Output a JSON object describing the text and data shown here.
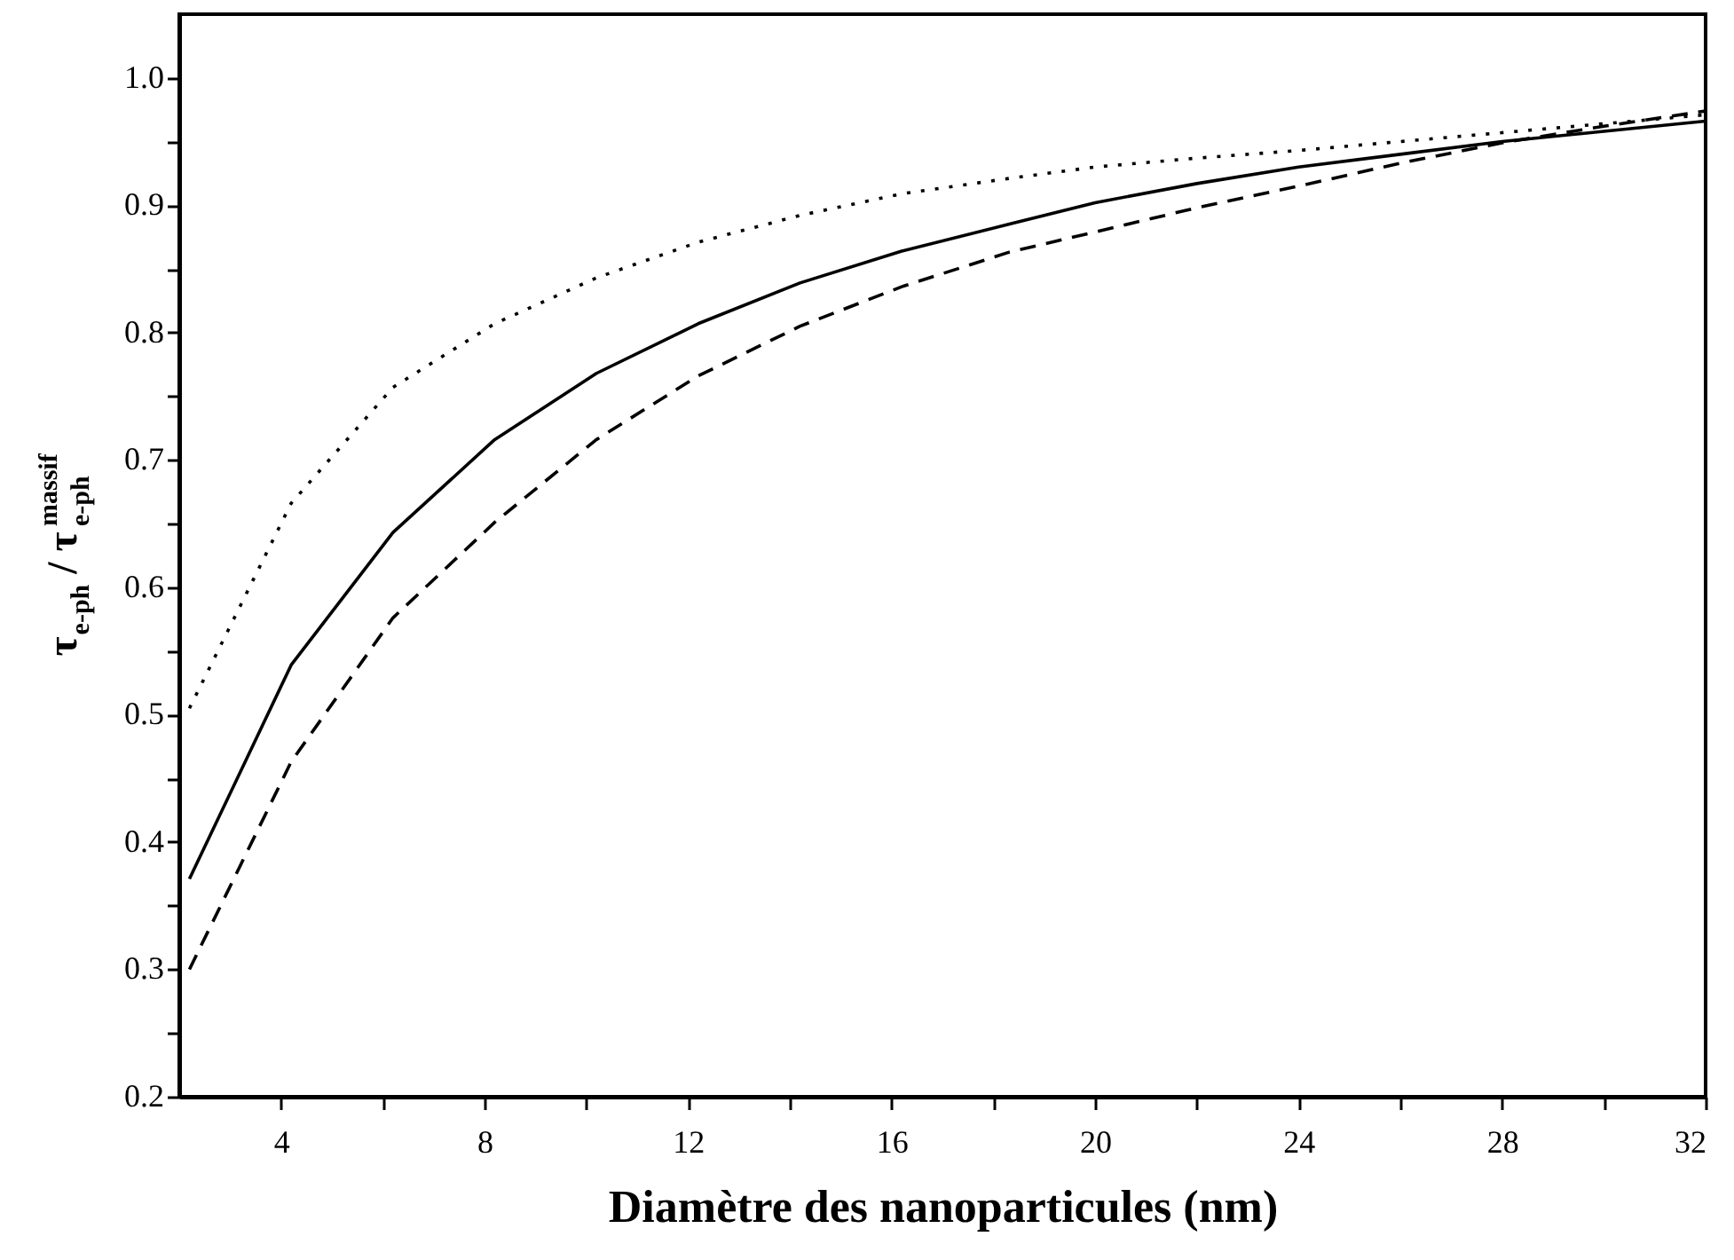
{
  "chart_data": {
    "type": "line",
    "xlabel": "Diamètre des nanoparticules   (nm)",
    "ylabel": "τ$_{e-ph}$ / τ$_{e-ph}$$^{massif}$",
    "xlim": [
      2,
      32
    ],
    "ylim": [
      0.2,
      1.05
    ],
    "xticks": [
      4,
      {
        "value": 6,
        "label": null
      },
      8,
      {
        "value": 10,
        "label": null
      },
      12,
      {
        "value": 14,
        "label": null
      },
      16,
      {
        "value": 18,
        "label": null
      },
      20,
      {
        "value": 22,
        "label": null
      },
      24,
      {
        "value": 26,
        "label": null
      },
      28,
      {
        "value": 30,
        "label": null
      },
      32
    ],
    "yticks": [
      {
        "value": 0.2,
        "label": "0.2"
      },
      {
        "value": 0.25,
        "label": null
      },
      {
        "value": 0.3,
        "label": "0.3"
      },
      {
        "value": 0.35,
        "label": null
      },
      {
        "value": 0.4,
        "label": "0.4"
      },
      {
        "value": 0.45,
        "label": null
      },
      {
        "value": 0.5,
        "label": "0.5"
      },
      {
        "value": 0.55,
        "label": null
      },
      {
        "value": 0.6,
        "label": "0.6"
      },
      {
        "value": 0.65,
        "label": null
      },
      {
        "value": 0.7,
        "label": "0.7"
      },
      {
        "value": 0.75,
        "label": null
      },
      {
        "value": 0.8,
        "label": "0.8"
      },
      {
        "value": 0.85,
        "label": null
      },
      {
        "value": 0.9,
        "label": "0.9"
      },
      {
        "value": 0.95,
        "label": null
      },
      {
        "value": 1.0,
        "label": "1.0"
      }
    ],
    "grid": false,
    "marker": "none",
    "series": [
      {
        "color": "#000000",
        "line_style": "solid",
        "x": [
          2.2,
          4.2,
          6.2,
          8.2,
          10.2,
          12.2,
          14.2,
          16.2,
          18.3,
          20,
          22,
          24,
          26,
          28,
          30,
          32
        ],
        "values": [
          0.371,
          0.539,
          0.643,
          0.716,
          0.768,
          0.807,
          0.839,
          0.864,
          0.885,
          0.902,
          0.917,
          0.93,
          0.94,
          0.95,
          0.958,
          0.966
        ]
      },
      {
        "color": "#000000",
        "line_style": "dashed",
        "x": [
          2.2,
          4.2,
          6.2,
          8.2,
          10.2,
          12.2,
          14.2,
          16.2,
          18.3,
          20,
          22,
          24,
          26,
          28,
          30,
          32
        ],
        "values": [
          0.3,
          0.463,
          0.576,
          0.651,
          0.716,
          0.766,
          0.805,
          0.836,
          0.863,
          0.879,
          0.898,
          0.915,
          0.933,
          0.949,
          0.962,
          0.974
        ]
      },
      {
        "color": "#000000",
        "line_style": "dotted",
        "x": [
          2.2,
          4.2,
          6.2,
          8.2,
          10.2,
          12.2,
          14.2,
          16.2,
          18.3,
          20,
          22,
          24,
          26,
          28,
          30,
          32
        ],
        "values": [
          0.505,
          0.666,
          0.757,
          0.807,
          0.843,
          0.871,
          0.892,
          0.909,
          0.921,
          0.93,
          0.937,
          0.943,
          0.95,
          0.957,
          0.964,
          0.971
        ]
      }
    ]
  }
}
